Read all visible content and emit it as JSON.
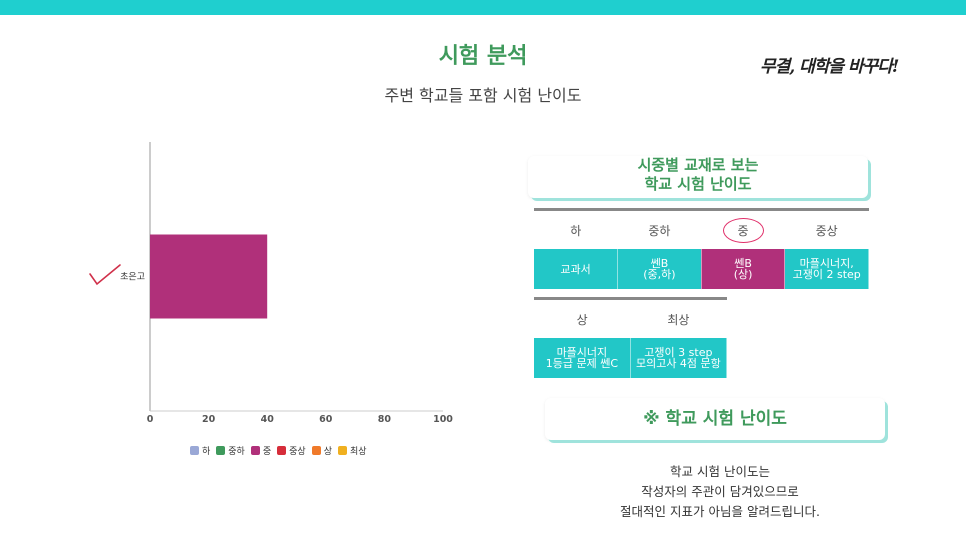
{
  "header": {
    "title": "시험 분석",
    "subtitle": "주변 학교들 포함 시험 난이도",
    "slogan": "무결, 대학을 바꾸다!"
  },
  "colors": {
    "accent_bar": "#1fcfcf",
    "title_green": "#3f9a5c",
    "teal_cell": "#22c7c7",
    "magenta_cell": "#b0307a"
  },
  "chart_data": {
    "type": "bar",
    "orientation": "horizontal",
    "categories": [
      "초은고"
    ],
    "series": [
      {
        "name": "하",
        "color": "#9aa8d6",
        "values": [
          0
        ]
      },
      {
        "name": "중하",
        "color": "#3f9a5c",
        "values": [
          0
        ]
      },
      {
        "name": "중",
        "color": "#b0307a",
        "values": [
          40
        ]
      },
      {
        "name": "중상",
        "color": "#d62d3a",
        "values": [
          0
        ]
      },
      {
        "name": "상",
        "color": "#f07a2a",
        "values": [
          0
        ]
      },
      {
        "name": "최상",
        "color": "#f0b020",
        "values": [
          0
        ]
      }
    ],
    "xlim": [
      0,
      100
    ],
    "xticks": [
      "0",
      "20",
      "40",
      "60",
      "80",
      "100"
    ],
    "grid": false,
    "legend_position": "bottom"
  },
  "panel": {
    "card_title_line1": "시중별 교재로 보는",
    "card_title_line2": "학교 시험 난이도",
    "row1_headers": [
      "하",
      "중하",
      "중",
      "중상"
    ],
    "row1_values": [
      [
        "교과서"
      ],
      [
        "쎈B",
        "(중,하)"
      ],
      [
        "쎈B",
        "(상)"
      ],
      [
        "마플시너지,",
        "고쟁이 2 step"
      ]
    ],
    "row2_headers": [
      "상",
      "최상"
    ],
    "row2_values": [
      [
        "마플시너지",
        "1등급 문제 쎈C"
      ],
      [
        "고쟁이 3 step",
        "모의고사 4점 문항"
      ]
    ],
    "selected_level": "중"
  },
  "bottom_card": {
    "title": "※ 학교 시험 난이도"
  },
  "note": {
    "lines": [
      "학교 시험 난이도는",
      "작성자의 주관이 담겨있으므로",
      "절대적인 지표가 아님을 알려드립니다."
    ]
  }
}
